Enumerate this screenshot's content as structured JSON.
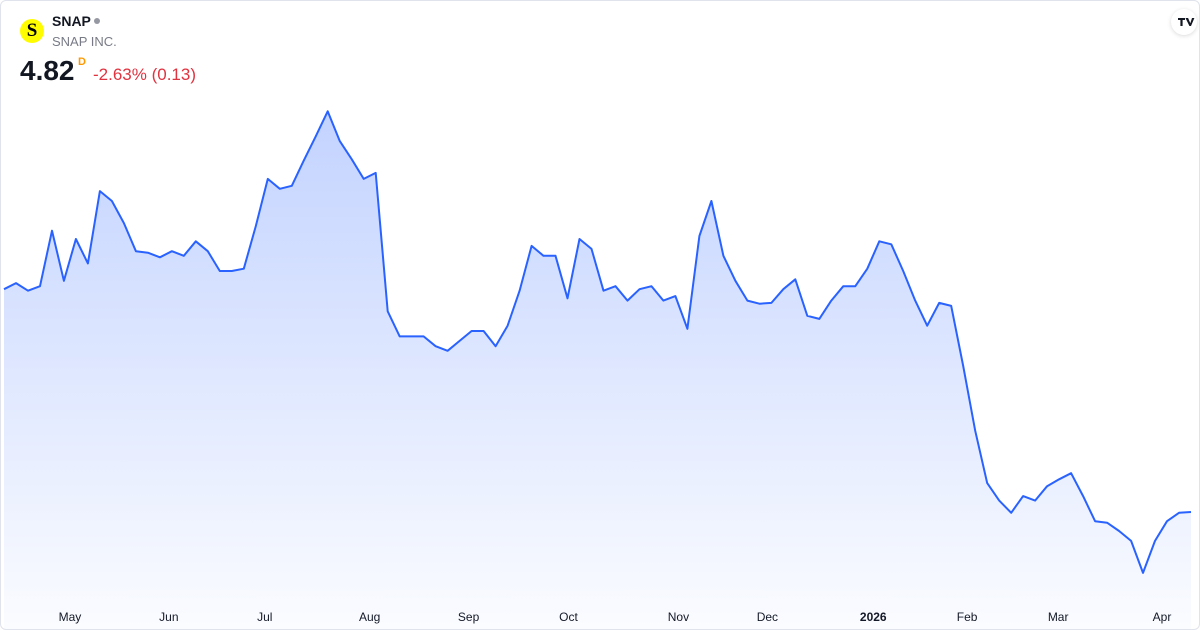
{
  "header": {
    "logo_letter": "S",
    "symbol": "SNAP",
    "company": "SNAP INC.",
    "price": "4.82",
    "resolution": "D",
    "change": "-2.63% (0.13)"
  },
  "chart_data": {
    "type": "area",
    "color": "#2962ff",
    "values": [
      7.75,
      7.83,
      7.73,
      7.79,
      8.52,
      7.86,
      8.41,
      8.09,
      9.04,
      8.91,
      8.62,
      8.25,
      8.23,
      8.17,
      8.25,
      8.19,
      8.38,
      8.25,
      7.99,
      7.99,
      8.02,
      8.58,
      9.2,
      9.07,
      9.11,
      9.44,
      9.76,
      10.09,
      9.7,
      9.46,
      9.2,
      9.28,
      7.46,
      7.13,
      7.13,
      7.13,
      7.0,
      6.94,
      7.07,
      7.2,
      7.2,
      7.0,
      7.27,
      7.73,
      8.32,
      8.19,
      8.19,
      7.63,
      8.41,
      8.28,
      7.73,
      7.79,
      7.6,
      7.75,
      7.79,
      7.6,
      7.66,
      7.23,
      8.45,
      8.91,
      8.19,
      7.86,
      7.6,
      7.56,
      7.57,
      7.75,
      7.88,
      7.4,
      7.36,
      7.6,
      7.79,
      7.79,
      8.02,
      8.38,
      8.34,
      7.99,
      7.6,
      7.27,
      7.57,
      7.53,
      6.74,
      5.89,
      5.2,
      4.97,
      4.81,
      5.03,
      4.97,
      5.16,
      5.25,
      5.33,
      5.03,
      4.7,
      4.68,
      4.57,
      4.44,
      4.02,
      4.44,
      4.7,
      4.81,
      4.82
    ],
    "xlim": [
      0,
      99
    ],
    "xticks": [
      {
        "value": 5.5,
        "label": "May"
      },
      {
        "value": 13.75,
        "label": "Jun"
      },
      {
        "value": 21.75,
        "label": "Jul"
      },
      {
        "value": 30.5,
        "label": "Aug"
      },
      {
        "value": 38.75,
        "label": "Sep"
      },
      {
        "value": 47.08,
        "label": "Oct"
      },
      {
        "value": 56.25,
        "label": "Nov"
      },
      {
        "value": 63.67,
        "label": "Dec"
      },
      {
        "value": 72.5,
        "label": "2026"
      },
      {
        "value": 80.33,
        "label": "Feb"
      },
      {
        "value": 87.92,
        "label": "Mar"
      },
      {
        "value": 96.58,
        "label": "Apr"
      }
    ],
    "ylim": [
      3.65,
      11.54
    ]
  }
}
